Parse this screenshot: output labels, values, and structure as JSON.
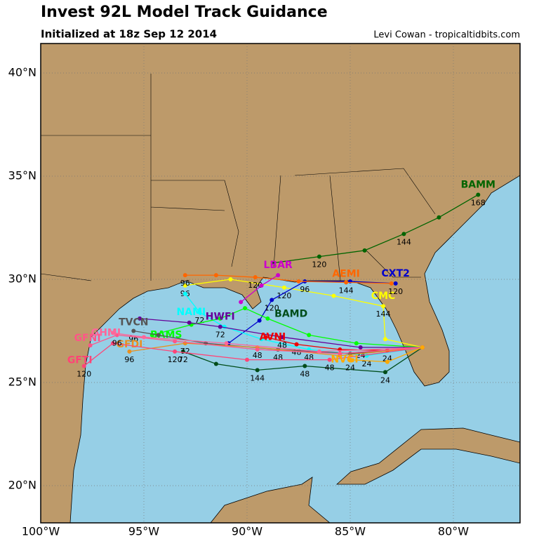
{
  "header": {
    "title": "Invest 92L Model Track Guidance",
    "subtitle": "Initialized at 18z Sep 12 2014",
    "credit": "Levi Cowan - tropicaltidbits.com"
  },
  "map": {
    "lon_ticks": [
      {
        "value": -100,
        "label": "100°W"
      },
      {
        "value": -95,
        "label": "95°W"
      },
      {
        "value": -90,
        "label": "90°W"
      },
      {
        "value": -85,
        "label": "85°W"
      },
      {
        "value": -80,
        "label": "80°W"
      }
    ],
    "lat_ticks": [
      {
        "value": 20,
        "label": "20°N"
      },
      {
        "value": 25,
        "label": "25°N"
      },
      {
        "value": 30,
        "label": "30°N"
      },
      {
        "value": 35,
        "label": "35°N"
      },
      {
        "value": 40,
        "label": "40°N"
      }
    ],
    "tracks": [
      {
        "label": "BAMM",
        "color": "#006400",
        "points": [
          {
            "lon": -88.7,
            "lat": 30.8
          },
          {
            "lon": -86.5,
            "lat": 31.1,
            "hour": 120
          },
          {
            "lon": -84.3,
            "lat": 31.4
          },
          {
            "lon": -82.4,
            "lat": 32.2,
            "hour": 144
          },
          {
            "lon": -80.7,
            "lat": 33.0
          },
          {
            "lon": -78.8,
            "lat": 34.1,
            "hour": 168
          }
        ]
      },
      {
        "label": "CMC",
        "color": "#ffff00",
        "points": [
          {
            "lon": -81.5,
            "lat": 26.7
          },
          {
            "lon": -83.3,
            "lat": 27.1
          },
          {
            "lon": -83.4,
            "lat": 28.7,
            "hour": 144
          },
          {
            "lon": -85.8,
            "lat": 29.2
          },
          {
            "lon": -88.2,
            "lat": 29.6,
            "hour": 120
          },
          {
            "lon": -90.8,
            "lat": 30.0
          },
          {
            "lon": -93.0,
            "lat": 29.7,
            "hour": 96
          }
        ]
      },
      {
        "label": "CXT2",
        "color": "#0000cc",
        "points": [
          {
            "lon": -82.8,
            "lat": 29.8,
            "hour": 120
          },
          {
            "lon": -85.0,
            "lat": 29.9
          },
          {
            "lon": -87.2,
            "lat": 29.9,
            "hour": 96
          },
          {
            "lon": -88.8,
            "lat": 29.0,
            "hour": 120
          },
          {
            "lon": -89.4,
            "lat": 28.0
          },
          {
            "lon": -90.9,
            "lat": 26.9
          }
        ]
      },
      {
        "label": "AEMI",
        "color": "#ff6600",
        "points": [
          {
            "lon": -83.0,
            "lat": 29.8
          },
          {
            "lon": -85.2,
            "lat": 29.85,
            "hour": 144
          },
          {
            "lon": -87.5,
            "lat": 29.9
          },
          {
            "lon": -89.6,
            "lat": 30.1,
            "hour": 120
          },
          {
            "lon": -91.5,
            "lat": 30.2
          },
          {
            "lon": -93.0,
            "lat": 30.2,
            "hour": 96
          }
        ]
      },
      {
        "label": "LBAR",
        "color": "#cc00cc",
        "points": [
          {
            "lon": -88.5,
            "lat": 30.2
          },
          {
            "lon": -89.3,
            "lat": 29.7
          },
          {
            "lon": -90.3,
            "lat": 28.9
          }
        ]
      },
      {
        "label": "NAMI",
        "color": "#00ffff",
        "points": [
          {
            "lon": -81.5,
            "lat": 26.7
          },
          {
            "lon": -84.2,
            "lat": 26.3,
            "hour": 24
          },
          {
            "lon": -87.0,
            "lat": 26.6,
            "hour": 48
          },
          {
            "lon": -89.3,
            "lat": 27.1
          },
          {
            "lon": -91.1,
            "lat": 27.7
          },
          {
            "lon": -92.3,
            "lat": 28.4,
            "hour": 72
          },
          {
            "lon": -93.0,
            "lat": 29.3
          }
        ]
      },
      {
        "label": "BAMS",
        "color": "#00ff00",
        "points": [
          {
            "lon": -81.5,
            "lat": 26.7
          },
          {
            "lon": -84.7,
            "lat": 26.9
          },
          {
            "lon": -87.0,
            "lat": 27.3
          },
          {
            "lon": -89.0,
            "lat": 28.1
          },
          {
            "lon": -90.1,
            "lat": 28.6
          },
          {
            "lon": -91.3,
            "lat": 28.1
          },
          {
            "lon": -92.7,
            "lat": 27.8
          },
          {
            "lon": -94.6,
            "lat": 27.3
          }
        ]
      },
      {
        "label": "BAMD",
        "color": "#004d1a",
        "points": [
          {
            "lon": -81.5,
            "lat": 26.7
          },
          {
            "lon": -83.3,
            "lat": 25.5,
            "hour": 24
          },
          {
            "lon": -87.2,
            "lat": 25.8,
            "hour": 48
          },
          {
            "lon": -89.5,
            "lat": 25.6,
            "hour": 144
          },
          {
            "lon": -91.5,
            "lat": 25.9
          },
          {
            "lon": -93.1,
            "lat": 26.5,
            "hour": 72
          }
        ]
      },
      {
        "label": "HWFI",
        "color": "#660099",
        "points": [
          {
            "lon": -81.5,
            "lat": 26.7
          },
          {
            "lon": -84.5,
            "lat": 26.7,
            "hour": 24
          },
          {
            "lon": -88.3,
            "lat": 27.2,
            "hour": 48
          },
          {
            "lon": -91.3,
            "lat": 27.7,
            "hour": 72
          },
          {
            "lon": -92.8,
            "lat": 27.9
          },
          {
            "lon": -95.2,
            "lat": 28.1
          }
        ]
      },
      {
        "label": "AVNI",
        "color": "#ee0000",
        "points": [
          {
            "lon": -81.5,
            "lat": 26.7
          },
          {
            "lon": -83.2,
            "lat": 26.55,
            "hour": 24
          },
          {
            "lon": -85.5,
            "lat": 26.6
          },
          {
            "lon": -87.6,
            "lat": 26.85,
            "hour": 48
          },
          {
            "lon": -89.1,
            "lat": 27.2
          }
        ]
      },
      {
        "label": "TVCN",
        "color": "#555555",
        "points": [
          {
            "lon": -81.5,
            "lat": 26.7
          },
          {
            "lon": -85.0,
            "lat": 26.4
          },
          {
            "lon": -88.5,
            "lat": 26.6,
            "hour": 48
          },
          {
            "lon": -92.0,
            "lat": 26.9
          },
          {
            "lon": -94.3,
            "lat": 27.3
          },
          {
            "lon": -95.5,
            "lat": 27.5,
            "hour": 96
          }
        ]
      },
      {
        "label": "GFDI",
        "color": "#e89020",
        "points": [
          {
            "lon": -81.5,
            "lat": 26.7
          },
          {
            "lon": -85.5,
            "lat": 26.3
          },
          {
            "lon": -89.5,
            "lat": 26.7,
            "hour": 48
          },
          {
            "lon": -93.0,
            "lat": 26.9,
            "hour": 72
          },
          {
            "lon": -95.7,
            "lat": 26.5,
            "hour": 96
          }
        ]
      },
      {
        "label": "GFTI",
        "color": "#ff4477",
        "points": [
          {
            "lon": -81.5,
            "lat": 26.7
          },
          {
            "lon": -86.0,
            "lat": 26.1,
            "hour": 48
          },
          {
            "lon": -90.0,
            "lat": 26.1
          },
          {
            "lon": -93.5,
            "lat": 26.5,
            "hour": 120
          },
          {
            "lon": -96.5,
            "lat": 26.9
          },
          {
            "lon": -97.9,
            "lat": 25.8,
            "hour": 120
          }
        ]
      },
      {
        "label": "GFNI",
        "color": "#ff5588",
        "points": [
          {
            "lon": -81.5,
            "lat": 26.7
          },
          {
            "lon": -85.5,
            "lat": 26.4
          },
          {
            "lon": -89.5,
            "lat": 26.6
          },
          {
            "lon": -93.5,
            "lat": 27.0
          },
          {
            "lon": -96.3,
            "lat": 27.3,
            "hour": 96
          },
          {
            "lon": -97.6,
            "lat": 26.8
          }
        ]
      },
      {
        "label": "GHMI",
        "color": "#ff6699",
        "points": [
          {
            "lon": -81.5,
            "lat": 26.7
          },
          {
            "lon": -86.5,
            "lat": 26.5
          },
          {
            "lon": -91.0,
            "lat": 26.9
          },
          {
            "lon": -95.0,
            "lat": 27.2
          },
          {
            "lon": -96.5,
            "lat": 27.4
          }
        ]
      },
      {
        "label": "NVGI",
        "color": "#ffaa00",
        "points": [
          {
            "lon": -81.5,
            "lat": 26.7
          },
          {
            "lon": -83.2,
            "lat": 26.0
          },
          {
            "lon": -85.0,
            "lat": 26.1,
            "hour": 24
          }
        ]
      }
    ]
  }
}
